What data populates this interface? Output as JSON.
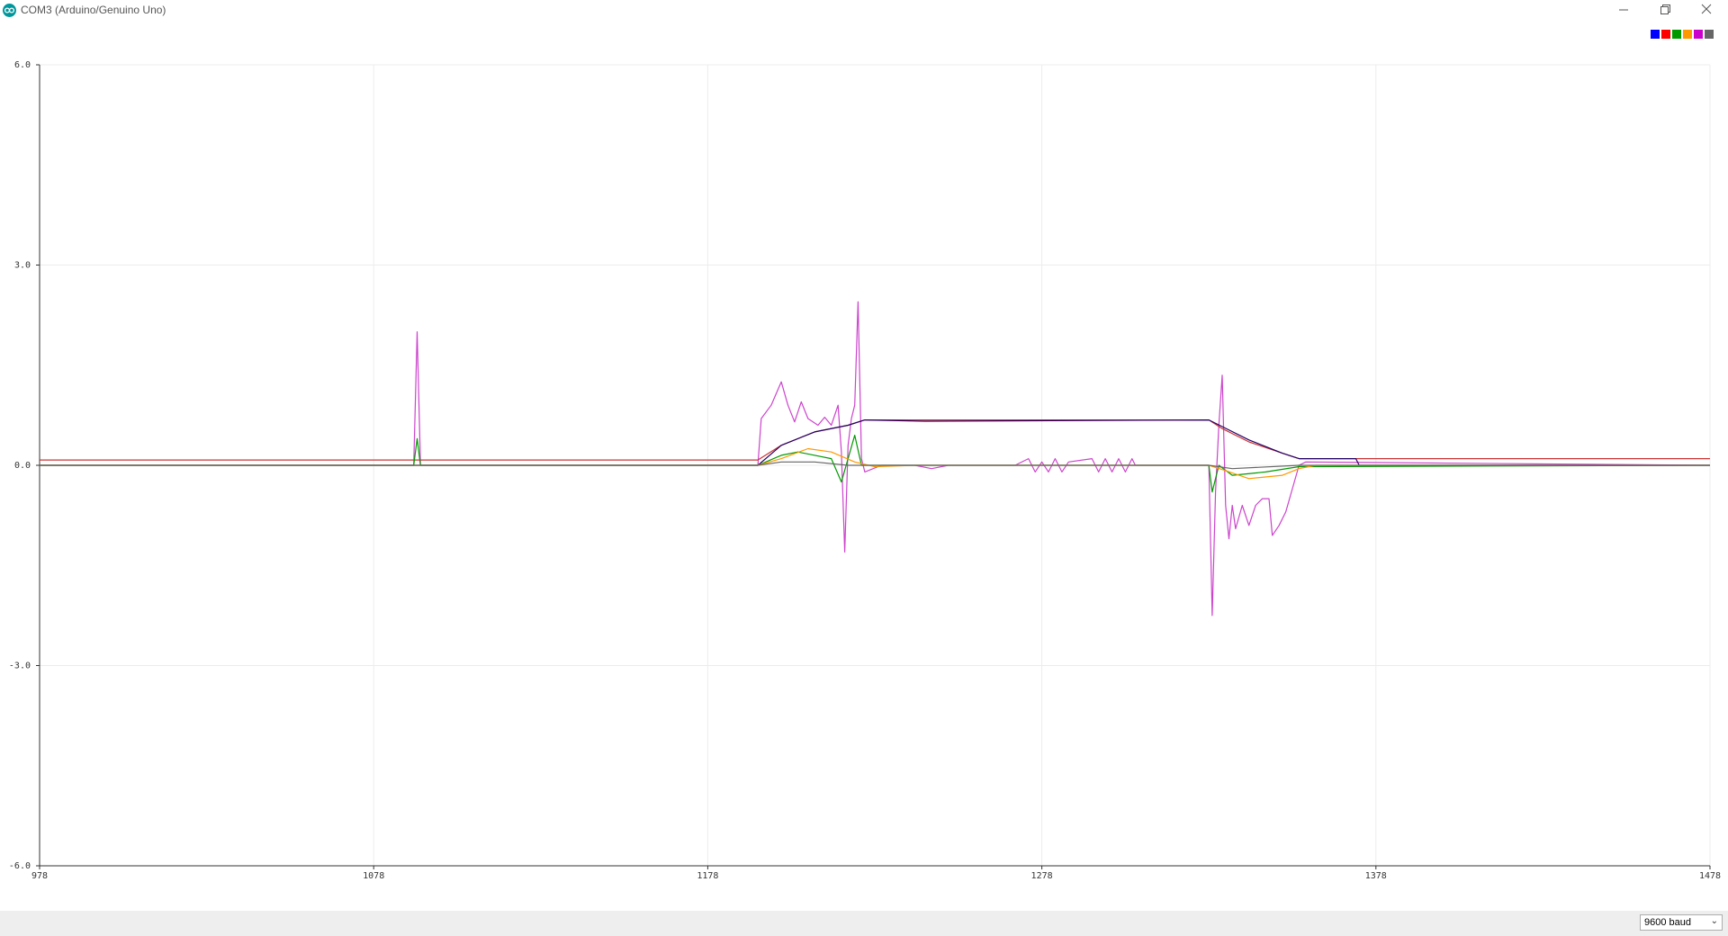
{
  "window": {
    "title": "COM3 (Arduino/Genuino Uno)",
    "minimize_icon": "minimize-icon",
    "restore_icon": "restore-icon",
    "close_icon": "close-icon"
  },
  "legend": {
    "colors": [
      "#0000ff",
      "#ff0000",
      "#009900",
      "#ff9900",
      "#cc00cc",
      "#666666"
    ]
  },
  "footer": {
    "baud_label": "9600 baud"
  },
  "chart_data": {
    "type": "line",
    "title": "",
    "xlabel": "",
    "ylabel": "",
    "xlim": [
      978,
      1478
    ],
    "ylim": [
      -6.0,
      6.0
    ],
    "x_ticks": [
      "978",
      "1078",
      "1178",
      "1278",
      "1378",
      "1478"
    ],
    "y_ticks": [
      "6.0",
      "3.0",
      "0.0",
      "-3.0",
      "-6.0"
    ],
    "grid": true,
    "legend": "top-right",
    "series": [
      {
        "color": "#cc44cc",
        "points": [
          [
            978,
            0
          ],
          [
            1090,
            0
          ],
          [
            1091,
            2.0
          ],
          [
            1092,
            0
          ],
          [
            1193,
            0
          ],
          [
            1194,
            0.7
          ],
          [
            1197,
            0.9
          ],
          [
            1200,
            1.25
          ],
          [
            1202,
            0.9
          ],
          [
            1204,
            0.65
          ],
          [
            1206,
            0.95
          ],
          [
            1208,
            0.7
          ],
          [
            1211,
            0.6
          ],
          [
            1213,
            0.72
          ],
          [
            1215,
            0.6
          ],
          [
            1217,
            0.9
          ],
          [
            1218,
            0.2
          ],
          [
            1219,
            -1.3
          ],
          [
            1220,
            0.3
          ],
          [
            1221,
            0.7
          ],
          [
            1222,
            0.9
          ],
          [
            1223,
            2.45
          ],
          [
            1224,
            0.1
          ],
          [
            1225,
            -0.1
          ],
          [
            1230,
            0
          ],
          [
            1240,
            0
          ],
          [
            1245,
            -0.05
          ],
          [
            1250,
            0
          ],
          [
            1260,
            0
          ],
          [
            1270,
            0
          ],
          [
            1274,
            0.1
          ],
          [
            1276,
            -0.1
          ],
          [
            1278,
            0.05
          ],
          [
            1280,
            -0.1
          ],
          [
            1282,
            0.1
          ],
          [
            1284,
            -0.1
          ],
          [
            1286,
            0.05
          ],
          [
            1293,
            0.1
          ],
          [
            1295,
            -0.1
          ],
          [
            1297,
            0.1
          ],
          [
            1299,
            -0.1
          ],
          [
            1301,
            0.1
          ],
          [
            1303,
            -0.1
          ],
          [
            1305,
            0.1
          ],
          [
            1306,
            0
          ],
          [
            1328,
            0
          ],
          [
            1329,
            -2.25
          ],
          [
            1330,
            -0.4
          ],
          [
            1331,
            0.6
          ],
          [
            1332,
            1.35
          ],
          [
            1333,
            -0.6
          ],
          [
            1334,
            -1.1
          ],
          [
            1335,
            -0.6
          ],
          [
            1336,
            -0.95
          ],
          [
            1338,
            -0.6
          ],
          [
            1340,
            -0.9
          ],
          [
            1342,
            -0.6
          ],
          [
            1344,
            -0.5
          ],
          [
            1346,
            -0.5
          ],
          [
            1347,
            -1.05
          ],
          [
            1349,
            -0.9
          ],
          [
            1351,
            -0.7
          ],
          [
            1353,
            -0.35
          ],
          [
            1355,
            0
          ],
          [
            1357,
            0.05
          ],
          [
            1478,
            0
          ]
        ]
      },
      {
        "color": "#cc3333",
        "points": [
          [
            978,
            0.08
          ],
          [
            1193,
            0.08
          ],
          [
            1200,
            0.3
          ],
          [
            1210,
            0.5
          ],
          [
            1220,
            0.6
          ],
          [
            1225,
            0.68
          ],
          [
            1328,
            0.68
          ],
          [
            1332,
            0.55
          ],
          [
            1340,
            0.35
          ],
          [
            1350,
            0.18
          ],
          [
            1355,
            0.1
          ],
          [
            1478,
            0.1
          ]
        ]
      },
      {
        "color": "#220066",
        "points": [
          [
            978,
            0
          ],
          [
            1193,
            0
          ],
          [
            1200,
            0.3
          ],
          [
            1210,
            0.5
          ],
          [
            1220,
            0.6
          ],
          [
            1225,
            0.68
          ],
          [
            1243,
            0.66
          ],
          [
            1328,
            0.68
          ],
          [
            1332,
            0.58
          ],
          [
            1340,
            0.38
          ],
          [
            1350,
            0.18
          ],
          [
            1355,
            0.1
          ],
          [
            1372,
            0.1
          ],
          [
            1373,
            0
          ],
          [
            1478,
            0
          ]
        ]
      },
      {
        "color": "#009900",
        "points": [
          [
            978,
            0
          ],
          [
            1090,
            0
          ],
          [
            1091,
            0.4
          ],
          [
            1092,
            0
          ],
          [
            1193,
            0
          ],
          [
            1200,
            0.15
          ],
          [
            1205,
            0.2
          ],
          [
            1215,
            0.1
          ],
          [
            1218,
            -0.25
          ],
          [
            1222,
            0.45
          ],
          [
            1224,
            0
          ],
          [
            1240,
            0
          ],
          [
            1328,
            0
          ],
          [
            1329,
            -0.4
          ],
          [
            1331,
            0
          ],
          [
            1335,
            -0.15
          ],
          [
            1345,
            -0.1
          ],
          [
            1355,
            -0.02
          ],
          [
            1478,
            0
          ]
        ]
      },
      {
        "color": "#ff9900",
        "points": [
          [
            978,
            0
          ],
          [
            1193,
            0
          ],
          [
            1200,
            0.1
          ],
          [
            1208,
            0.25
          ],
          [
            1215,
            0.2
          ],
          [
            1222,
            0.05
          ],
          [
            1228,
            -0.02
          ],
          [
            1240,
            0
          ],
          [
            1328,
            0
          ],
          [
            1333,
            -0.08
          ],
          [
            1340,
            -0.2
          ],
          [
            1350,
            -0.15
          ],
          [
            1355,
            -0.05
          ],
          [
            1360,
            0
          ],
          [
            1478,
            0
          ]
        ]
      },
      {
        "color": "#666666",
        "points": [
          [
            978,
            0
          ],
          [
            1193,
            0
          ],
          [
            1200,
            0.05
          ],
          [
            1210,
            0.05
          ],
          [
            1220,
            0
          ],
          [
            1328,
            0
          ],
          [
            1335,
            -0.05
          ],
          [
            1355,
            0
          ],
          [
            1478,
            0
          ]
        ]
      }
    ]
  }
}
